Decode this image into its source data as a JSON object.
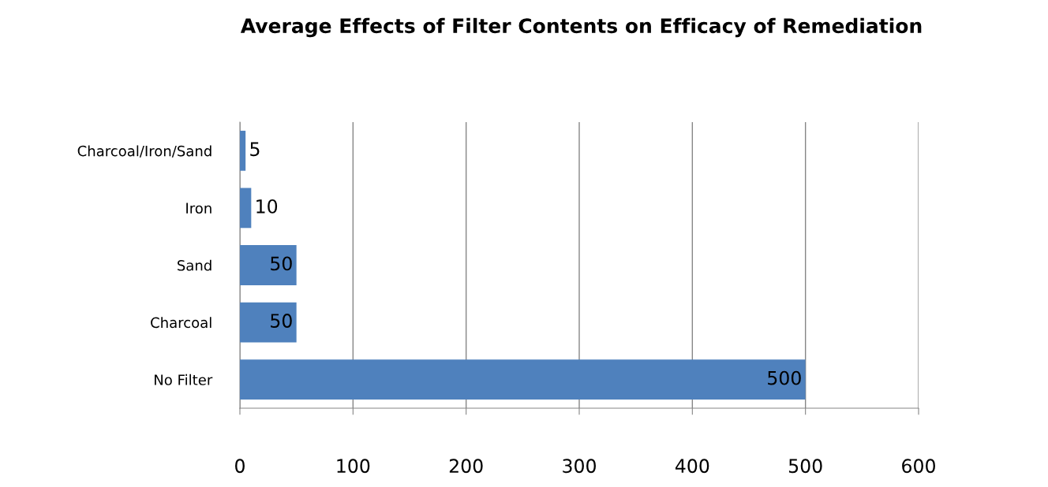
{
  "chart_data": {
    "type": "bar",
    "orientation": "horizontal",
    "title": "Average Effects of Filter Contents on Efficacy of Remediation",
    "categories": [
      "Charcoal/Iron/Sand",
      "Iron",
      "Sand",
      "Charcoal",
      "No Filter"
    ],
    "values": [
      5,
      10,
      50,
      50,
      500
    ],
    "color": "#4f81bd",
    "xlim": [
      0,
      600
    ],
    "xticks": [
      0,
      100,
      200,
      300,
      400,
      500,
      600
    ],
    "grid": "x",
    "data_labels": true
  }
}
